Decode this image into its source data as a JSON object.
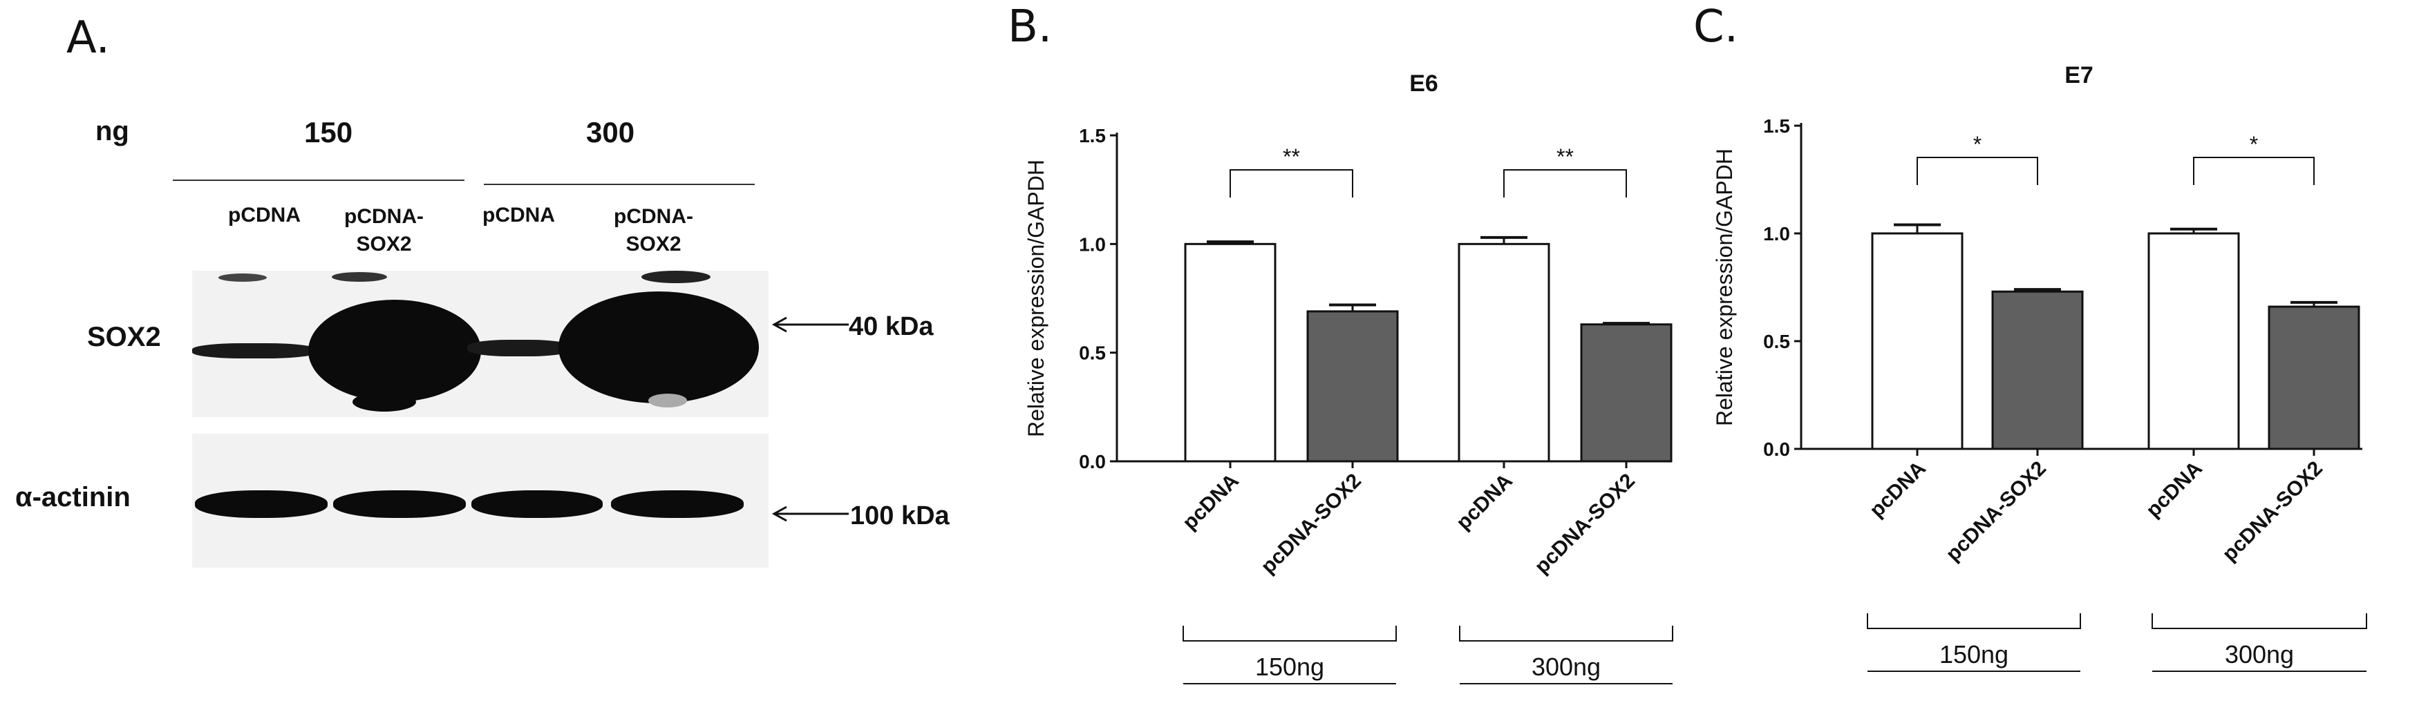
{
  "panel_a": {
    "label": "A.",
    "ng_label": "ng",
    "dose_150": "150",
    "dose_300": "300",
    "lanes": [
      {
        "line1": "pCDNA",
        "line2": ""
      },
      {
        "line1": "pCDNA-",
        "line2": "SOX2"
      },
      {
        "line1": "pCDNA",
        "line2": ""
      },
      {
        "line1": "pCDNA-",
        "line2": "SOX2"
      }
    ],
    "row1_label": "SOX2",
    "row2_label": "α-actinin",
    "marker1": "40 kDa",
    "marker2": "100 kDa"
  },
  "chart_data": [
    {
      "panel": "B.",
      "type": "bar",
      "title": "E6",
      "ylabel": "Relative expression/GAPDH",
      "xlabel": "",
      "ylim": [
        0,
        1.5
      ],
      "yticks": [
        "0.0",
        "0.5",
        "1.0",
        "1.5"
      ],
      "categories": [
        "pcDNA",
        "pcDNA-SOX2",
        "pcDNA",
        "pcDNA-SOX2"
      ],
      "values": [
        1.0,
        0.69,
        1.0,
        0.63
      ],
      "errors": [
        0.01,
        0.03,
        0.03,
        0.005
      ],
      "colors": [
        "#ffffff",
        "#606060",
        "#ffffff",
        "#606060"
      ],
      "significance": [
        "**",
        "**"
      ],
      "groups": [
        "150ng",
        "300ng"
      ]
    },
    {
      "panel": "C.",
      "type": "bar",
      "title": "E7",
      "ylabel": "Relative expression/GAPDH",
      "xlabel": "",
      "ylim": [
        0,
        1.5
      ],
      "yticks": [
        "0.0",
        "0.5",
        "1.0",
        "1.5"
      ],
      "categories": [
        "pcDNA",
        "pcDNA-SOX2",
        "pcDNA",
        "pcDNA-SOX2"
      ],
      "values": [
        1.0,
        0.73,
        1.0,
        0.66
      ],
      "errors": [
        0.04,
        0.01,
        0.02,
        0.02
      ],
      "colors": [
        "#ffffff",
        "#606060",
        "#ffffff",
        "#606060"
      ],
      "significance": [
        "*",
        "*"
      ],
      "groups": [
        "150ng",
        "300ng"
      ]
    }
  ]
}
